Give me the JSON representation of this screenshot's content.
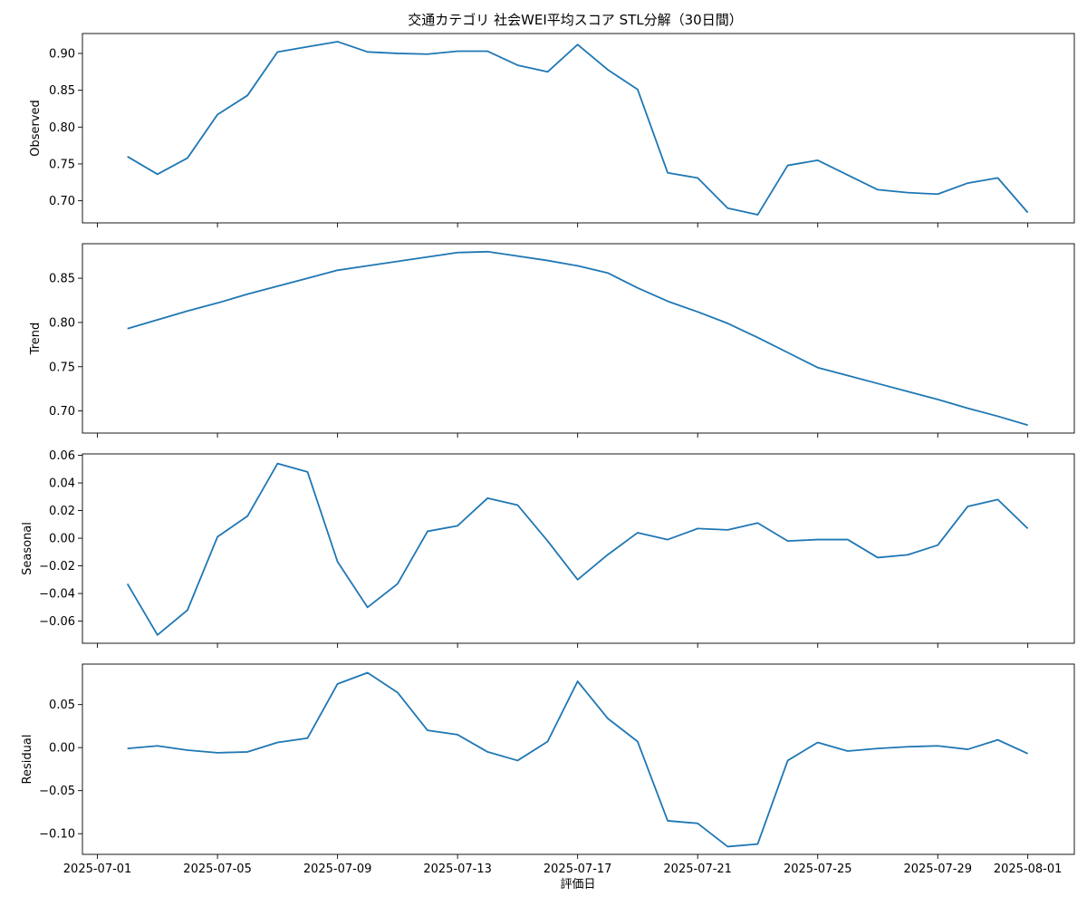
{
  "chart_data": {
    "type": "line",
    "title": "交通カテゴリ 社会WEI平均スコア STL分解（30日間）",
    "xlabel": "評価日",
    "x_ticks": [
      "2025-07-01",
      "2025-07-05",
      "2025-07-09",
      "2025-07-13",
      "2025-07-17",
      "2025-07-21",
      "2025-07-25",
      "2025-07-29",
      "2025-08-01"
    ],
    "x": [
      "2025-07-02",
      "2025-07-03",
      "2025-07-04",
      "2025-07-05",
      "2025-07-06",
      "2025-07-07",
      "2025-07-08",
      "2025-07-09",
      "2025-07-10",
      "2025-07-11",
      "2025-07-12",
      "2025-07-13",
      "2025-07-14",
      "2025-07-15",
      "2025-07-16",
      "2025-07-17",
      "2025-07-18",
      "2025-07-19",
      "2025-07-20",
      "2025-07-21",
      "2025-07-22",
      "2025-07-23",
      "2025-07-24",
      "2025-07-25",
      "2025-07-26",
      "2025-07-27",
      "2025-07-28",
      "2025-07-29",
      "2025-07-30",
      "2025-07-31",
      "2025-08-01"
    ],
    "line_color": "#1f77b4",
    "panels": [
      {
        "ylabel": "Observed",
        "ylim": [
          0.67,
          0.927
        ],
        "yticks": [
          0.7,
          0.75,
          0.8,
          0.85,
          0.9
        ],
        "yticklabels": [
          "0.70",
          "0.75",
          "0.80",
          "0.85",
          "0.90"
        ],
        "values": [
          0.76,
          0.736,
          0.758,
          0.817,
          0.843,
          0.902,
          0.909,
          0.916,
          0.902,
          0.9,
          0.899,
          0.903,
          0.903,
          0.884,
          0.875,
          0.912,
          0.878,
          0.851,
          0.738,
          0.731,
          0.69,
          0.681,
          0.748,
          0.755,
          0.735,
          0.715,
          0.711,
          0.709,
          0.724,
          0.731,
          0.684
        ]
      },
      {
        "ylabel": "Trend",
        "ylim": [
          0.675,
          0.889
        ],
        "yticks": [
          0.7,
          0.75,
          0.8,
          0.85
        ],
        "yticklabels": [
          "0.70",
          "0.75",
          "0.80",
          "0.85"
        ],
        "values": [
          0.793,
          0.803,
          0.813,
          0.822,
          0.832,
          0.841,
          0.85,
          0.859,
          0.864,
          0.869,
          0.874,
          0.879,
          0.88,
          0.875,
          0.87,
          0.864,
          0.856,
          0.839,
          0.824,
          0.812,
          0.799,
          0.783,
          0.766,
          0.749,
          0.74,
          0.731,
          0.722,
          0.713,
          0.703,
          0.694,
          0.684
        ]
      },
      {
        "ylabel": "Seasonal",
        "ylim": [
          -0.076,
          0.061
        ],
        "yticks": [
          -0.06,
          -0.04,
          -0.02,
          0.0,
          0.02,
          0.04,
          0.06
        ],
        "yticklabels": [
          "−0.06",
          "−0.04",
          "−0.02",
          "0.00",
          "0.02",
          "0.04",
          "0.06"
        ],
        "values": [
          -0.033,
          -0.07,
          -0.052,
          0.001,
          0.016,
          0.054,
          0.048,
          -0.017,
          -0.05,
          -0.033,
          0.005,
          0.009,
          0.029,
          0.024,
          -0.002,
          -0.03,
          -0.012,
          0.004,
          -0.001,
          0.007,
          0.006,
          0.011,
          -0.002,
          -0.001,
          -0.001,
          -0.014,
          -0.012,
          -0.005,
          0.023,
          0.028,
          0.007
        ]
      },
      {
        "ylabel": "Residual",
        "ylim": [
          -0.124,
          0.097
        ],
        "yticks": [
          -0.1,
          -0.05,
          0.0,
          0.05
        ],
        "yticklabels": [
          "−0.10",
          "−0.05",
          "0.00",
          "0.05"
        ],
        "values": [
          -0.001,
          0.002,
          -0.003,
          -0.006,
          -0.005,
          0.006,
          0.011,
          0.074,
          0.087,
          0.064,
          0.02,
          0.015,
          -0.005,
          -0.015,
          0.007,
          0.077,
          0.034,
          0.007,
          -0.085,
          -0.088,
          -0.115,
          -0.112,
          -0.015,
          0.006,
          -0.004,
          -0.001,
          0.001,
          0.002,
          -0.002,
          0.009,
          -0.007
        ]
      }
    ],
    "grid": false,
    "legend": "none"
  }
}
